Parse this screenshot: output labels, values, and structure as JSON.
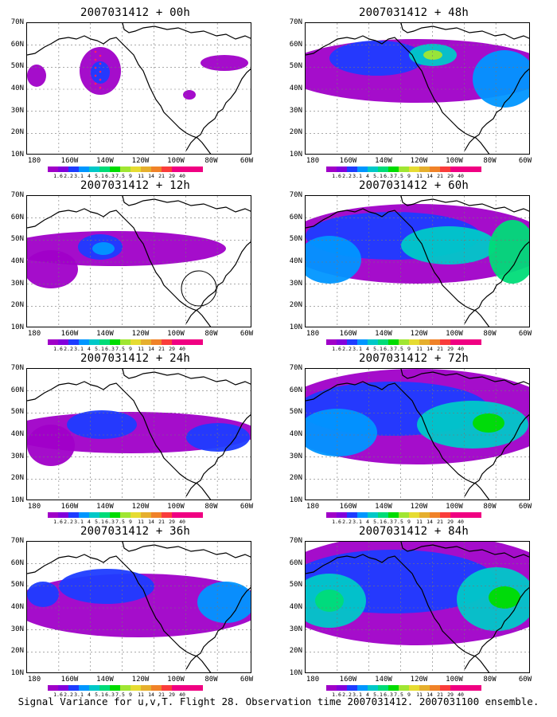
{
  "figure": {
    "caption": "Signal Variance for u,v,T. Flight 28. Observation time 2007031412. 2007031100 ensemble.",
    "lat_ticks": [
      "70N",
      "60N",
      "50N",
      "40N",
      "30N",
      "20N",
      "10N"
    ],
    "lon_ticks": [
      "180",
      "160W",
      "140W",
      "120W",
      "100W",
      "80W",
      "60W"
    ],
    "colorbar": {
      "labels": [
        "1.6",
        "2.2",
        "3.1",
        "4",
        "5.1",
        "6.3",
        "7.5",
        "9",
        "11",
        "14",
        "21",
        "29",
        "40"
      ],
      "colors": [
        "#a000c8",
        "#8200dc",
        "#1e3cff",
        "#0096ff",
        "#00c8c8",
        "#00dc78",
        "#00dc00",
        "#a0e632",
        "#e6dc32",
        "#e6af2d",
        "#f08228",
        "#fa3c3c",
        "#f00082"
      ]
    }
  },
  "panels": [
    {
      "title": "2007031412 + 00h",
      "col": 0,
      "row": 0,
      "level": 0
    },
    {
      "title": "2007031412 + 48h",
      "col": 1,
      "row": 0,
      "level": 4
    },
    {
      "title": "2007031412 + 12h",
      "col": 0,
      "row": 1,
      "level": 1
    },
    {
      "title": "2007031412 + 60h",
      "col": 1,
      "row": 1,
      "level": 5
    },
    {
      "title": "2007031412 + 24h",
      "col": 0,
      "row": 2,
      "level": 2
    },
    {
      "title": "2007031412 + 72h",
      "col": 1,
      "row": 2,
      "level": 6
    },
    {
      "title": "2007031412 + 36h",
      "col": 0,
      "row": 3,
      "level": 3
    },
    {
      "title": "2007031412 + 84h",
      "col": 1,
      "row": 3,
      "level": 7
    }
  ]
}
